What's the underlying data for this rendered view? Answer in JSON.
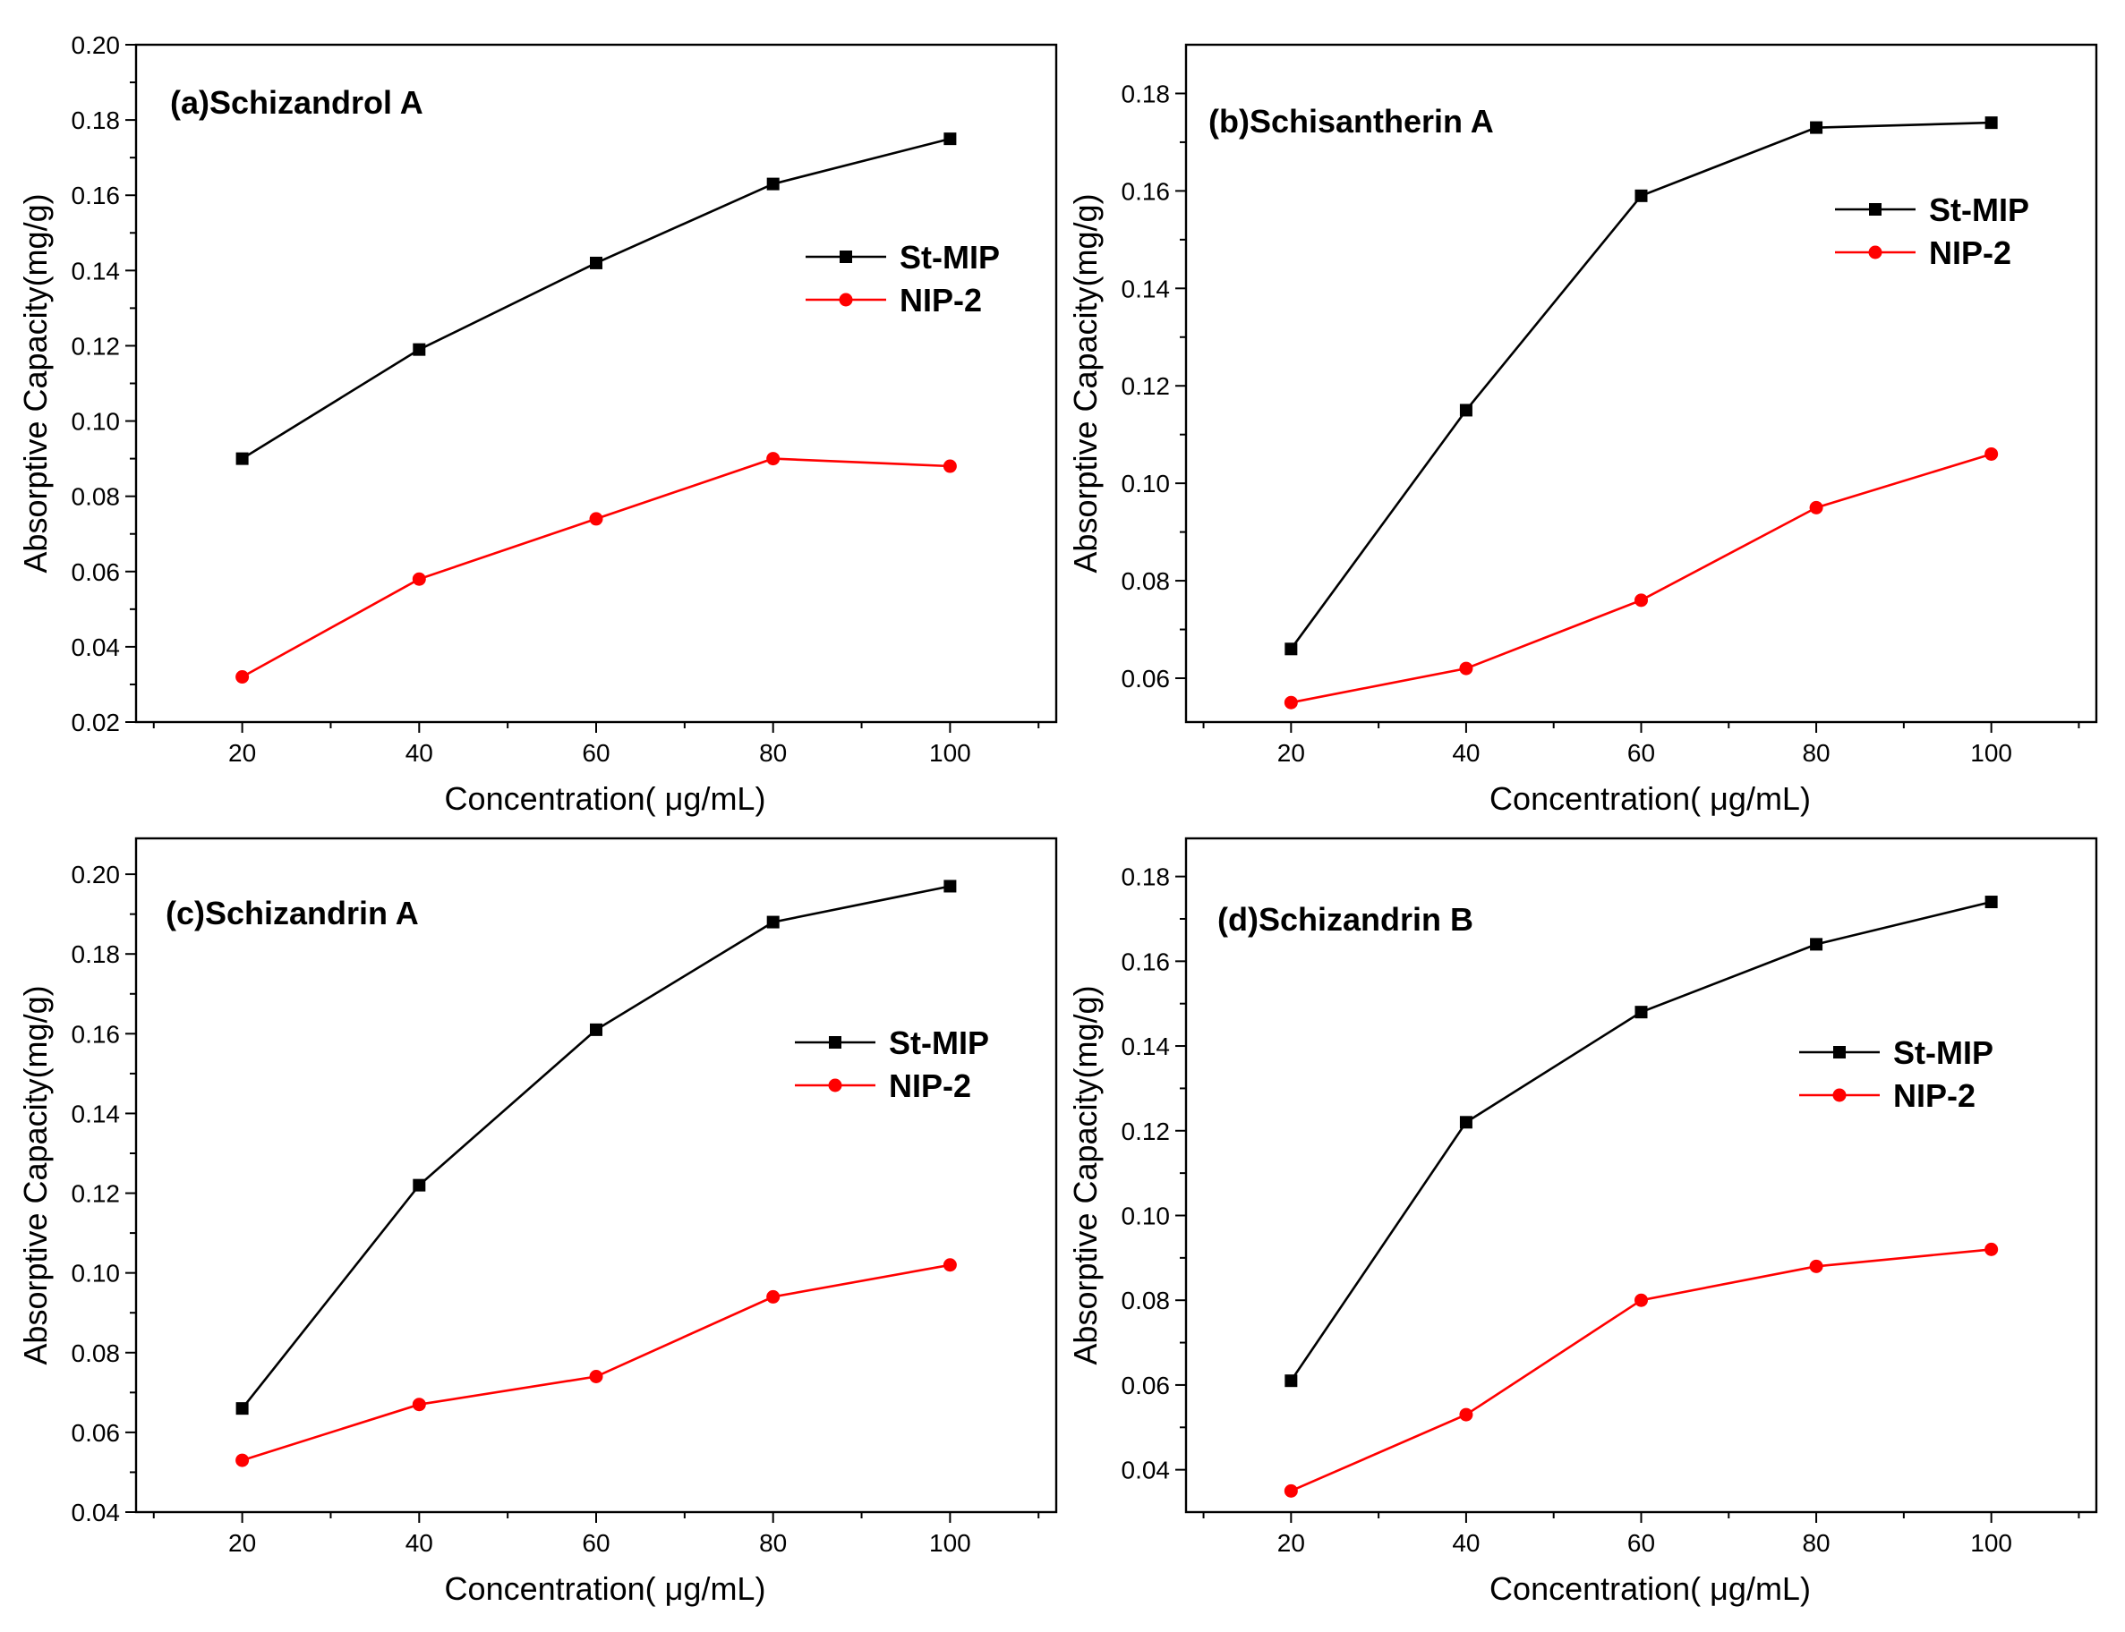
{
  "chart_data": [
    {
      "type": "line",
      "title": "(a)Schizandrol A",
      "xlabel": "Concentration( μg/mL)",
      "ylabel": "Absorptive Capacity(mg/g)",
      "x": [
        20,
        40,
        60,
        80,
        100
      ],
      "xlim": [
        8,
        112
      ],
      "ylim": [
        0.02,
        0.2
      ],
      "xticks": [
        20,
        40,
        60,
        80,
        100
      ],
      "yticks": [
        0.02,
        0.04,
        0.06,
        0.08,
        0.1,
        0.12,
        0.14,
        0.16,
        0.18,
        0.2
      ],
      "ytick_labels": [
        "0.02",
        "0.04",
        "0.06",
        "0.08",
        "0.10",
        "0.12",
        "0.14",
        "0.16",
        "0.18",
        "0.20"
      ],
      "legend_position": "upper-right",
      "series": [
        {
          "name": "St-MIP",
          "color": "#000000",
          "marker": "square",
          "values": [
            0.09,
            0.119,
            0.142,
            0.163,
            0.175
          ]
        },
        {
          "name": "NIP-2",
          "color": "#ff0000",
          "marker": "circle",
          "values": [
            0.032,
            0.058,
            0.074,
            0.09,
            0.088
          ]
        }
      ]
    },
    {
      "type": "line",
      "title": "(b)Schisantherin A",
      "xlabel": "Concentration( μg/mL)",
      "ylabel": "Absorptive Capacity(mg/g)",
      "x": [
        20,
        40,
        60,
        80,
        100
      ],
      "xlim": [
        8,
        112
      ],
      "ylim": [
        0.051,
        0.19
      ],
      "xticks": [
        20,
        40,
        60,
        80,
        100
      ],
      "yticks": [
        0.06,
        0.08,
        0.1,
        0.12,
        0.14,
        0.16,
        0.18
      ],
      "ytick_labels": [
        "0.06",
        "0.08",
        "0.10",
        "0.12",
        "0.14",
        "0.16",
        "0.18"
      ],
      "legend_position": "upper-right",
      "series": [
        {
          "name": "St-MIP",
          "color": "#000000",
          "marker": "square",
          "values": [
            0.066,
            0.115,
            0.159,
            0.173,
            0.174
          ]
        },
        {
          "name": "NIP-2",
          "color": "#ff0000",
          "marker": "circle",
          "values": [
            0.055,
            0.062,
            0.076,
            0.095,
            0.106
          ]
        }
      ]
    },
    {
      "type": "line",
      "title": "(c)Schizandrin A",
      "xlabel": "Concentration( μg/mL)",
      "ylabel": "Absorptive Capacity(mg/g)",
      "x": [
        20,
        40,
        60,
        80,
        100
      ],
      "xlim": [
        8,
        112
      ],
      "ylim": [
        0.04,
        0.209
      ],
      "xticks": [
        20,
        40,
        60,
        80,
        100
      ],
      "yticks": [
        0.04,
        0.06,
        0.08,
        0.1,
        0.12,
        0.14,
        0.16,
        0.18,
        0.2
      ],
      "ytick_labels": [
        "0.04",
        "0.06",
        "0.08",
        "0.10",
        "0.12",
        "0.14",
        "0.16",
        "0.18",
        "0.20"
      ],
      "legend_position": "right",
      "series": [
        {
          "name": "St-MIP",
          "color": "#000000",
          "marker": "square",
          "values": [
            0.066,
            0.122,
            0.161,
            0.188,
            0.197
          ]
        },
        {
          "name": "NIP-2",
          "color": "#ff0000",
          "marker": "circle",
          "values": [
            0.053,
            0.067,
            0.074,
            0.094,
            0.102
          ]
        }
      ]
    },
    {
      "type": "line",
      "title": "(d)Schizandrin B",
      "xlabel": "Concentration( μg/mL)",
      "ylabel": "Absorptive Capacity(mg/g)",
      "x": [
        20,
        40,
        60,
        80,
        100
      ],
      "xlim": [
        8,
        112
      ],
      "ylim": [
        0.03,
        0.189
      ],
      "xticks": [
        20,
        40,
        60,
        80,
        100
      ],
      "yticks": [
        0.04,
        0.06,
        0.08,
        0.1,
        0.12,
        0.14,
        0.16,
        0.18
      ],
      "ytick_labels": [
        "0.04",
        "0.06",
        "0.08",
        "0.10",
        "0.12",
        "0.14",
        "0.16",
        "0.18"
      ],
      "legend_position": "right",
      "series": [
        {
          "name": "St-MIP",
          "color": "#000000",
          "marker": "square",
          "values": [
            0.061,
            0.122,
            0.148,
            0.164,
            0.174
          ]
        },
        {
          "name": "NIP-2",
          "color": "#ff0000",
          "marker": "circle",
          "values": [
            0.035,
            0.053,
            0.08,
            0.088,
            0.092
          ]
        }
      ]
    }
  ]
}
